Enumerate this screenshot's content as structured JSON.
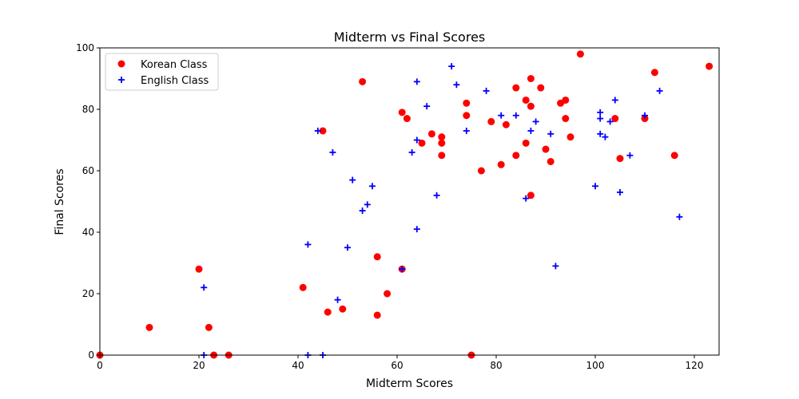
{
  "chart_data": {
    "type": "scatter",
    "title": "Midterm vs Final Scores",
    "xlabel": "Midterm Scores",
    "ylabel": "Final Scores",
    "xlim": [
      0,
      125
    ],
    "ylim": [
      0,
      100
    ],
    "xticks": [
      0,
      20,
      40,
      60,
      80,
      100,
      120
    ],
    "yticks": [
      0,
      20,
      40,
      60,
      80,
      100
    ],
    "grid": false,
    "legend_position": "top-left",
    "series": [
      {
        "name": "Korean Class",
        "color": "#ff0000",
        "marker": "circle",
        "points": [
          [
            0,
            0
          ],
          [
            10,
            9
          ],
          [
            20,
            28
          ],
          [
            22,
            9
          ],
          [
            23,
            0
          ],
          [
            26,
            0
          ],
          [
            41,
            22
          ],
          [
            45,
            73
          ],
          [
            46,
            14
          ],
          [
            49,
            15
          ],
          [
            53,
            89
          ],
          [
            56,
            32
          ],
          [
            56,
            13
          ],
          [
            58,
            20
          ],
          [
            61,
            79
          ],
          [
            61,
            28
          ],
          [
            62,
            77
          ],
          [
            65,
            69
          ],
          [
            67,
            72
          ],
          [
            69,
            71
          ],
          [
            69,
            69
          ],
          [
            69,
            65
          ],
          [
            74,
            82
          ],
          [
            74,
            78
          ],
          [
            75,
            0
          ],
          [
            77,
            60
          ],
          [
            79,
            76
          ],
          [
            81,
            62
          ],
          [
            82,
            75
          ],
          [
            84,
            87
          ],
          [
            84,
            65
          ],
          [
            86,
            83
          ],
          [
            86,
            69
          ],
          [
            87,
            90
          ],
          [
            87,
            81
          ],
          [
            87,
            52
          ],
          [
            89,
            87
          ],
          [
            90,
            67
          ],
          [
            91,
            63
          ],
          [
            93,
            82
          ],
          [
            94,
            83
          ],
          [
            94,
            77
          ],
          [
            95,
            71
          ],
          [
            97,
            98
          ],
          [
            104,
            77
          ],
          [
            105,
            64
          ],
          [
            110,
            77
          ],
          [
            112,
            92
          ],
          [
            116,
            65
          ],
          [
            123,
            94
          ]
        ]
      },
      {
        "name": "English Class",
        "color": "#0000ff",
        "marker": "plus",
        "points": [
          [
            21,
            22
          ],
          [
            21,
            0
          ],
          [
            42,
            36
          ],
          [
            42,
            0
          ],
          [
            44,
            73
          ],
          [
            45,
            0
          ],
          [
            47,
            66
          ],
          [
            48,
            18
          ],
          [
            50,
            35
          ],
          [
            51,
            57
          ],
          [
            53,
            47
          ],
          [
            54,
            49
          ],
          [
            55,
            55
          ],
          [
            61,
            28
          ],
          [
            63,
            66
          ],
          [
            64,
            89
          ],
          [
            64,
            70
          ],
          [
            64,
            41
          ],
          [
            66,
            81
          ],
          [
            68,
            52
          ],
          [
            71,
            94
          ],
          [
            72,
            88
          ],
          [
            74,
            73
          ],
          [
            78,
            86
          ],
          [
            81,
            78
          ],
          [
            84,
            78
          ],
          [
            86,
            51
          ],
          [
            87,
            73
          ],
          [
            88,
            76
          ],
          [
            91,
            72
          ],
          [
            92,
            29
          ],
          [
            100,
            55
          ],
          [
            101,
            79
          ],
          [
            101,
            77
          ],
          [
            101,
            72
          ],
          [
            102,
            71
          ],
          [
            103,
            76
          ],
          [
            104,
            83
          ],
          [
            105,
            53
          ],
          [
            107,
            65
          ],
          [
            110,
            78
          ],
          [
            113,
            86
          ],
          [
            117,
            45
          ]
        ]
      }
    ]
  }
}
